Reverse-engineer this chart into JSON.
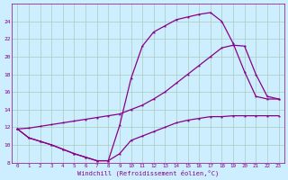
{
  "xlabel": "Windchill (Refroidissement éolien,°C)",
  "bg_color": "#cceeff",
  "line_color": "#880088",
  "grid_color": "#aaccbb",
  "x_all": [
    0,
    1,
    2,
    3,
    4,
    5,
    6,
    7,
    8,
    9,
    10,
    11,
    12,
    13,
    14,
    15,
    16,
    17,
    18,
    19,
    20,
    21,
    22,
    23
  ],
  "xlim_min": -0.5,
  "xlim_max": 23.5,
  "ylim_min": 8,
  "ylim_max": 26,
  "yticks": [
    8,
    10,
    12,
    14,
    16,
    18,
    20,
    22,
    24
  ],
  "s1_x": [
    0,
    1,
    2,
    3,
    4,
    5,
    6,
    7,
    8,
    9,
    10,
    11,
    12,
    13,
    14,
    15,
    16,
    17,
    18,
    19,
    20,
    21,
    22,
    23
  ],
  "s1_y": [
    11.8,
    10.8,
    10.4,
    10.0,
    9.5,
    9.0,
    8.6,
    8.2,
    8.2,
    9.0,
    10.5,
    11.0,
    11.5,
    12.0,
    12.5,
    12.8,
    13.0,
    13.2,
    13.2,
    13.3,
    13.3,
    13.3,
    13.3,
    13.3
  ],
  "s2_x": [
    0,
    1,
    2,
    3,
    4,
    5,
    6,
    7,
    8,
    9,
    10,
    11,
    12,
    13,
    14,
    15,
    16,
    17,
    18,
    19,
    20,
    21,
    22,
    23
  ],
  "s2_y": [
    11.8,
    10.8,
    10.4,
    10.0,
    9.5,
    9.0,
    8.6,
    8.2,
    8.2,
    12.2,
    17.5,
    21.2,
    22.8,
    23.5,
    24.2,
    24.5,
    24.8,
    25.0,
    24.0,
    21.5,
    18.3,
    15.5,
    15.2,
    15.2
  ],
  "s3_x": [
    0,
    1,
    2,
    3,
    4,
    5,
    6,
    7,
    8,
    9,
    10,
    11,
    12,
    13,
    14,
    15,
    16,
    17,
    18,
    19,
    20,
    21,
    22,
    23
  ],
  "s3_y": [
    11.8,
    11.9,
    12.1,
    12.3,
    12.5,
    12.7,
    12.9,
    13.1,
    13.3,
    13.5,
    14.0,
    14.5,
    15.2,
    16.0,
    17.0,
    18.0,
    19.0,
    20.0,
    21.0,
    21.3,
    21.2,
    18.0,
    15.5,
    15.2
  ]
}
